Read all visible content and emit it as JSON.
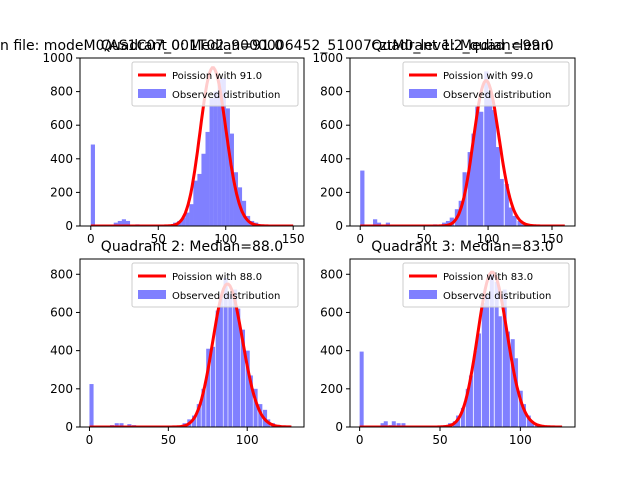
{
  "figure_title": "n file: modeM0/AS1C07_001T02_9000006452_51007cztM0_level2_quad_clean",
  "legend_labels": {
    "poisson_prefix": "Poission with ",
    "observed": "Observed distribution"
  },
  "colors": {
    "poisson": "#ff0000",
    "observed": "#8080ff",
    "axes": "#000000"
  },
  "chart_data": [
    {
      "type": "bar",
      "title": "Quadrant 0: Median=91.0",
      "poisson_mean": 91.0,
      "poisson_label": "91.0",
      "xlim": [
        -8,
        158
      ],
      "ylim": [
        0,
        1000
      ],
      "xticks": [
        0,
        50,
        100,
        150
      ],
      "yticks": [
        0,
        200,
        400,
        600,
        800,
        1000
      ],
      "legend_position": "top-right",
      "bin_width": 3.1,
      "bins": [
        [
          0,
          485
        ],
        [
          17,
          20
        ],
        [
          20,
          30
        ],
        [
          23,
          40
        ],
        [
          26,
          30
        ],
        [
          33,
          10
        ],
        [
          45,
          5
        ],
        [
          48,
          5
        ],
        [
          51,
          5
        ],
        [
          54,
          5
        ],
        [
          61,
          20
        ],
        [
          64,
          30
        ],
        [
          67,
          50
        ],
        [
          70,
          80
        ],
        [
          73,
          130
        ],
        [
          76,
          270
        ],
        [
          79,
          310
        ],
        [
          82,
          430
        ],
        [
          85,
          560
        ],
        [
          88,
          760
        ],
        [
          91,
          800
        ],
        [
          94,
          870
        ],
        [
          97,
          880
        ],
        [
          100,
          700
        ],
        [
          103,
          550
        ],
        [
          106,
          320
        ],
        [
          109,
          230
        ],
        [
          112,
          150
        ],
        [
          115,
          60
        ],
        [
          118,
          30
        ],
        [
          121,
          20
        ],
        [
          124,
          10
        ],
        [
          127,
          5
        ]
      ]
    },
    {
      "type": "bar",
      "title": "Quadrant 1: Median=99.0",
      "poisson_mean": 99.0,
      "poisson_label": "99.0",
      "xlim": [
        -8,
        168
      ],
      "ylim": [
        0,
        1000
      ],
      "xticks": [
        0,
        50,
        100,
        150
      ],
      "yticks": [
        0,
        200,
        400,
        600,
        800,
        1000
      ],
      "legend_position": "top-right",
      "bin_width": 3.3,
      "bins": [
        [
          0,
          330
        ],
        [
          10,
          40
        ],
        [
          13,
          20
        ],
        [
          20,
          20
        ],
        [
          27,
          5
        ],
        [
          40,
          5
        ],
        [
          57,
          10
        ],
        [
          64,
          20
        ],
        [
          67,
          30
        ],
        [
          70,
          50
        ],
        [
          74,
          100
        ],
        [
          77,
          150
        ],
        [
          80,
          320
        ],
        [
          84,
          440
        ],
        [
          87,
          550
        ],
        [
          90,
          710
        ],
        [
          93,
          680
        ],
        [
          97,
          920
        ],
        [
          100,
          800
        ],
        [
          103,
          690
        ],
        [
          106,
          470
        ],
        [
          109,
          280
        ],
        [
          113,
          250
        ],
        [
          116,
          110
        ],
        [
          119,
          60
        ],
        [
          123,
          30
        ],
        [
          126,
          10
        ],
        [
          129,
          5
        ]
      ]
    },
    {
      "type": "bar",
      "title": "Quadrant 2: Median=88.0",
      "poisson_mean": 88.0,
      "poisson_label": "88.0",
      "xlim": [
        -6,
        136
      ],
      "ylim": [
        0,
        880
      ],
      "xticks": [
        0,
        50,
        100
      ],
      "yticks": [
        0,
        200,
        400,
        600,
        800
      ],
      "legend_position": "top-right",
      "bin_width": 2.6,
      "bins": [
        [
          0,
          225
        ],
        [
          13,
          10
        ],
        [
          16,
          20
        ],
        [
          19,
          20
        ],
        [
          24,
          15
        ],
        [
          27,
          10
        ],
        [
          37,
          5
        ],
        [
          46,
          5
        ],
        [
          59,
          20
        ],
        [
          62,
          40
        ],
        [
          65,
          60
        ],
        [
          68,
          120
        ],
        [
          71,
          200
        ],
        [
          74,
          410
        ],
        [
          77,
          420
        ],
        [
          80,
          610
        ],
        [
          82,
          690
        ],
        [
          85,
          780
        ],
        [
          88,
          700
        ],
        [
          91,
          720
        ],
        [
          93,
          620
        ],
        [
          96,
          510
        ],
        [
          99,
          400
        ],
        [
          101,
          270
        ],
        [
          104,
          200
        ],
        [
          107,
          120
        ],
        [
          110,
          90
        ],
        [
          112,
          40
        ],
        [
          115,
          20
        ],
        [
          118,
          10
        ],
        [
          121,
          5
        ]
      ]
    },
    {
      "type": "bar",
      "title": "Quadrant 3: Median=83.0",
      "poisson_mean": 83.0,
      "poisson_label": "83.0",
      "xlim": [
        -6,
        134
      ],
      "ylim": [
        0,
        880
      ],
      "xticks": [
        0,
        50,
        100
      ],
      "yticks": [
        0,
        200,
        400,
        600,
        800
      ],
      "legend_position": "top-right",
      "bin_width": 2.5,
      "bins": [
        [
          0,
          395
        ],
        [
          13,
          20
        ],
        [
          15,
          30
        ],
        [
          18,
          10
        ],
        [
          20,
          30
        ],
        [
          23,
          20
        ],
        [
          26,
          20
        ],
        [
          33,
          5
        ],
        [
          41,
          5
        ],
        [
          46,
          5
        ],
        [
          52,
          10
        ],
        [
          55,
          20
        ],
        [
          58,
          30
        ],
        [
          60,
          60
        ],
        [
          63,
          100
        ],
        [
          66,
          200
        ],
        [
          68,
          270
        ],
        [
          71,
          400
        ],
        [
          73,
          490
        ],
        [
          76,
          650
        ],
        [
          78,
          690
        ],
        [
          81,
          800
        ],
        [
          84,
          760
        ],
        [
          86,
          580
        ],
        [
          89,
          720
        ],
        [
          91,
          500
        ],
        [
          94,
          460
        ],
        [
          96,
          360
        ],
        [
          99,
          190
        ],
        [
          101,
          120
        ],
        [
          104,
          60
        ],
        [
          106,
          30
        ],
        [
          109,
          10
        ],
        [
          111,
          5
        ]
      ]
    }
  ]
}
